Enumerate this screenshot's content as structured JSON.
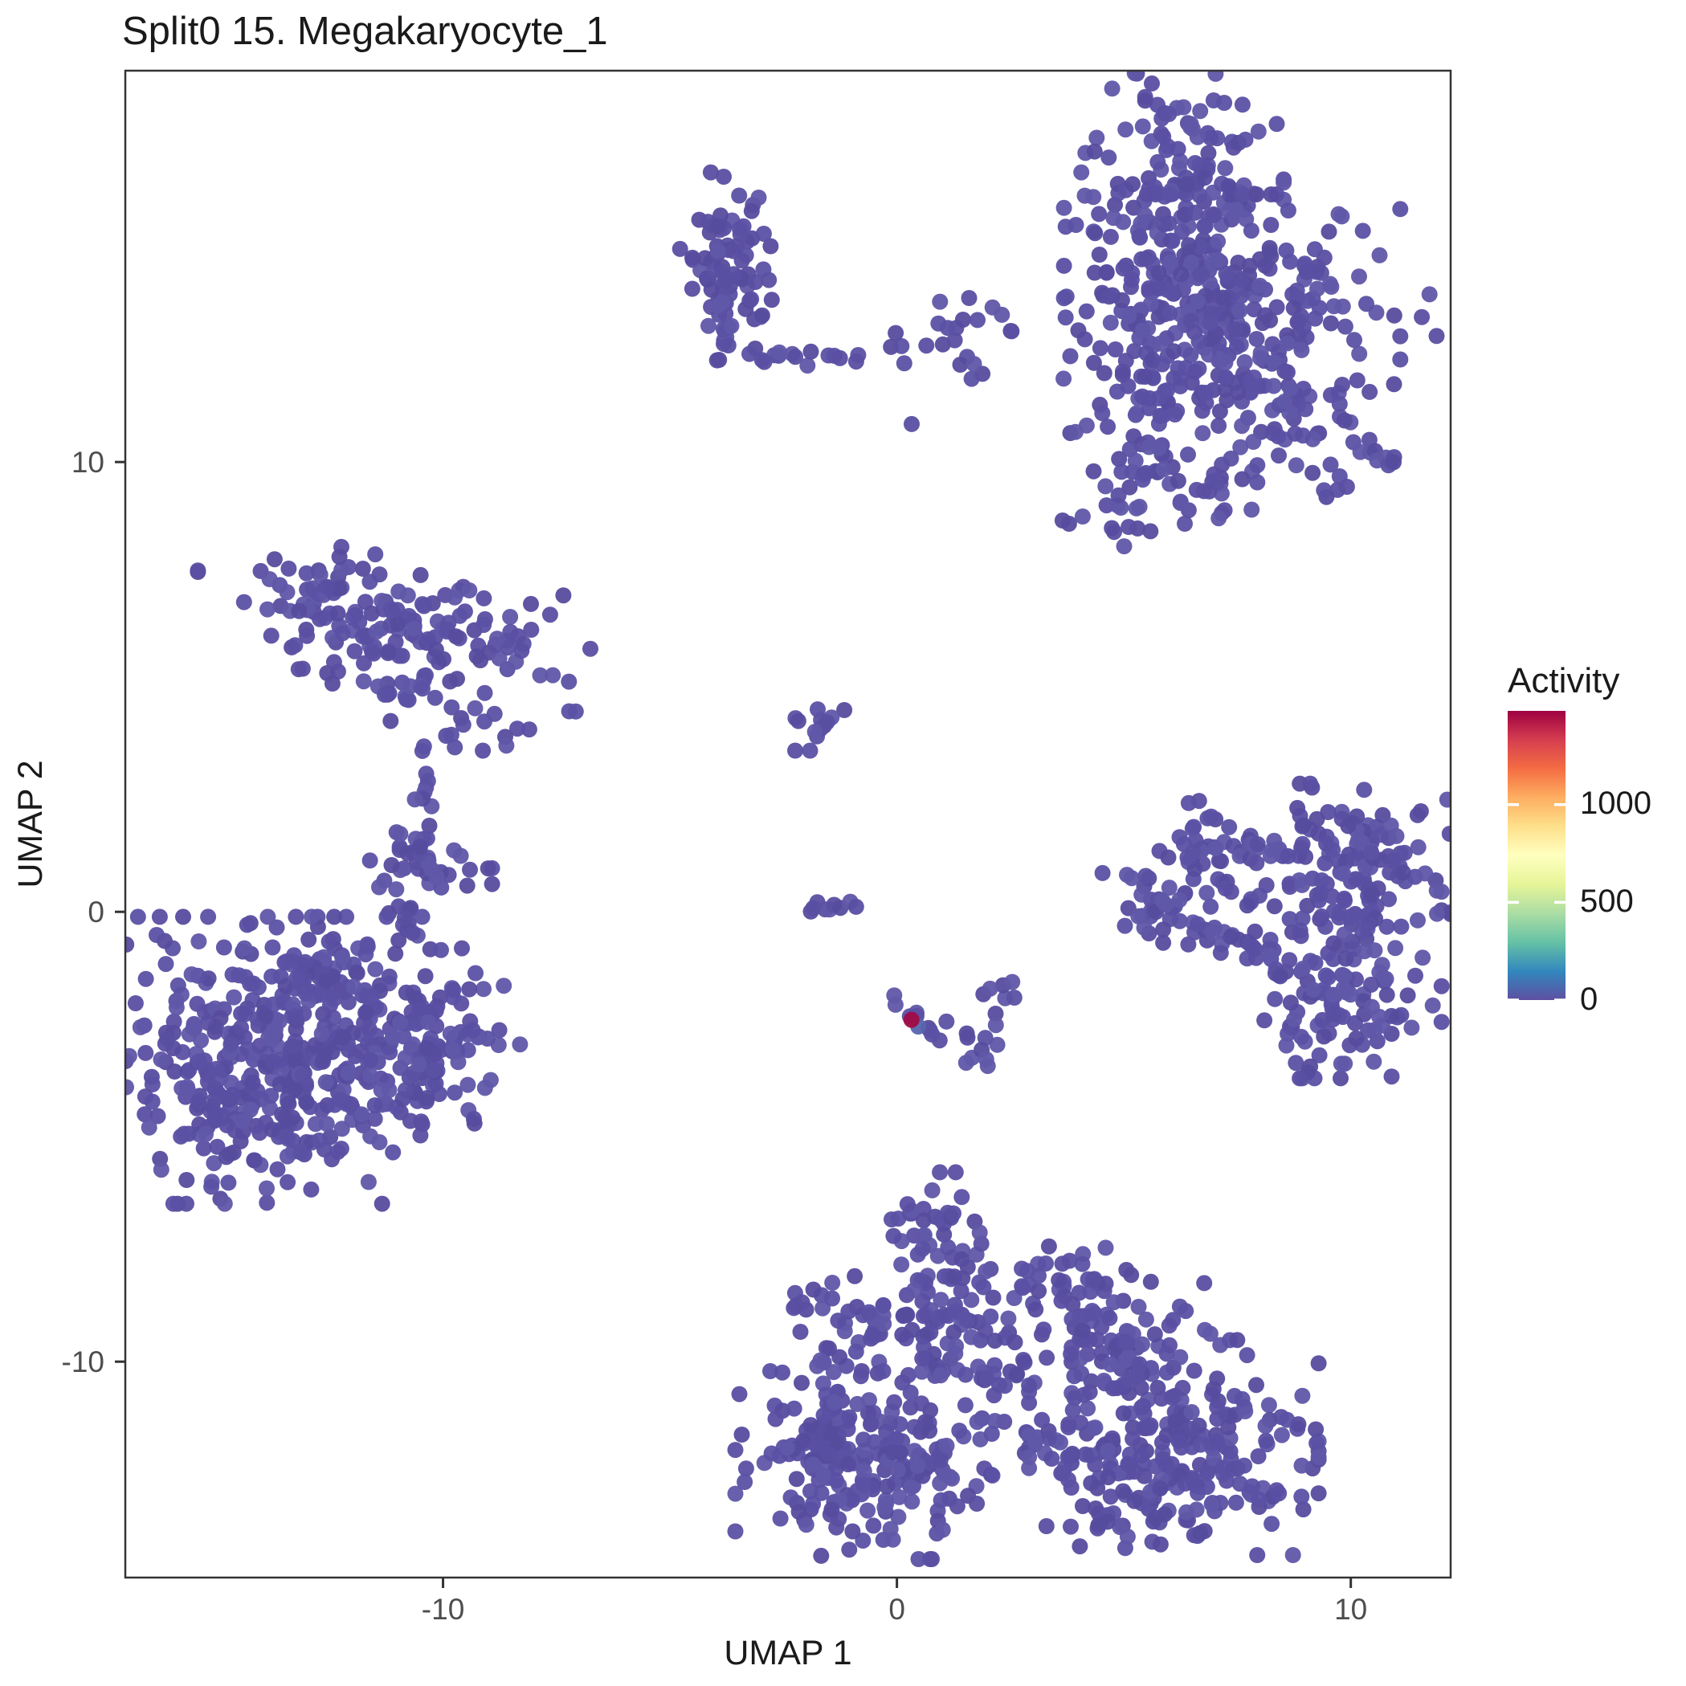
{
  "chart_data": {
    "type": "scatter",
    "title": "Split0 15. Megakaryocyte_1",
    "xlabel": "UMAP 1",
    "ylabel": "UMAP 2",
    "xlim": [
      -17.0,
      12.2
    ],
    "ylim": [
      -14.8,
      18.7
    ],
    "x_ticks": [
      -10,
      0,
      10
    ],
    "y_ticks": [
      -10,
      0,
      10
    ],
    "grid": false,
    "background": "#ffffff",
    "panel_border_color": "#333333",
    "tick_label_color": "#4d4d4d",
    "point_radius_px": 10,
    "base_point_colors": [
      "#5b51a4",
      "#5a4fa2",
      "#6057a8",
      "#564c9e"
    ],
    "legend": {
      "title": "Activity",
      "position": "right",
      "ticks": [
        0,
        500,
        1000
      ],
      "value_min": 0,
      "value_max": 1480,
      "palette_name": "spectral-reversed",
      "gradient_top_to_bottom": [
        "#9E0142",
        "#D53E4F",
        "#F46D43",
        "#FDAE61",
        "#FEE08B",
        "#FFFFBF",
        "#E6F598",
        "#ABDDA4",
        "#66C2A5",
        "#3288BD",
        "#5E4FA2"
      ]
    },
    "seed": 20240915,
    "clusters": [
      {
        "type": "blob",
        "x": -3.85,
        "y": 14.35,
        "sx": 0.5,
        "sy": 0.95,
        "n": 75
      },
      {
        "type": "blob",
        "x": -3.6,
        "y": 13.4,
        "sx": 0.3,
        "sy": 0.4,
        "n": 12
      },
      {
        "type": "chain",
        "x1": -3.25,
        "y1": 12.45,
        "x2": -1.9,
        "y2": 12.3,
        "n": 11,
        "jitter": 0.1
      },
      {
        "type": "chain",
        "x1": -1.5,
        "y1": 12.4,
        "x2": -0.8,
        "y2": 12.3,
        "n": 5,
        "jitter": 0.08
      },
      {
        "type": "blob",
        "x": -0.05,
        "y": 12.55,
        "sx": 0.18,
        "sy": 0.22,
        "n": 4
      },
      {
        "type": "blob",
        "x": 0.3,
        "y": 10.93,
        "sx": 0.05,
        "sy": 0.05,
        "n": 1
      },
      {
        "type": "blob",
        "x": 0.9,
        "y": 13.1,
        "sx": 0.45,
        "sy": 0.5,
        "n": 9
      },
      {
        "type": "blob",
        "x": 1.55,
        "y": 12.2,
        "sx": 0.3,
        "sy": 0.25,
        "n": 5
      },
      {
        "type": "blob",
        "x": 2.0,
        "y": 13.35,
        "sx": 0.2,
        "sy": 0.18,
        "n": 3
      },
      {
        "type": "blob",
        "x": 2.5,
        "y": 12.9,
        "sx": 0.15,
        "sy": 0.12,
        "n": 2
      },
      {
        "type": "blob",
        "x": 6.1,
        "y": 15.3,
        "sx": 1.1,
        "sy": 1.8,
        "n": 200
      },
      {
        "type": "blob",
        "x": 7.9,
        "y": 13.2,
        "sx": 1.45,
        "sy": 1.25,
        "n": 170
      },
      {
        "type": "blob",
        "x": 6.6,
        "y": 14.2,
        "sx": 0.9,
        "sy": 0.9,
        "n": 60
      },
      {
        "type": "blob",
        "x": 5.8,
        "y": 11.8,
        "sx": 0.9,
        "sy": 1.1,
        "n": 70
      },
      {
        "type": "blob",
        "x": 8.9,
        "y": 10.7,
        "sx": 0.7,
        "sy": 0.6,
        "n": 30
      },
      {
        "type": "blob",
        "x": 4.15,
        "y": 12.6,
        "sx": 0.3,
        "sy": 0.45,
        "n": 6
      },
      {
        "type": "blob",
        "x": 5.3,
        "y": 9.6,
        "sx": 0.75,
        "sy": 0.7,
        "n": 38
      },
      {
        "type": "blob",
        "x": 6.95,
        "y": 9.3,
        "sx": 0.45,
        "sy": 0.45,
        "n": 16
      },
      {
        "type": "blob",
        "x": 9.5,
        "y": 9.6,
        "sx": 0.3,
        "sy": 0.25,
        "n": 5
      },
      {
        "type": "chain",
        "x1": 10.15,
        "y1": 10.45,
        "x2": 11.1,
        "y2": 9.95,
        "n": 10,
        "jitter": 0.12
      },
      {
        "type": "blob",
        "x": 11.9,
        "y": 13.4,
        "sx": 0.2,
        "sy": 0.3,
        "n": 3
      },
      {
        "type": "blob",
        "x": 5.85,
        "y": 0.3,
        "sx": 0.6,
        "sy": 0.55,
        "n": 42
      },
      {
        "type": "blob",
        "x": 6.8,
        "y": 1.55,
        "sx": 0.45,
        "sy": 0.45,
        "n": 25
      },
      {
        "type": "chain",
        "x1": 7.35,
        "y1": 1.5,
        "x2": 8.9,
        "y2": 1.3,
        "n": 16,
        "jitter": 0.12
      },
      {
        "type": "blob",
        "x": 10.0,
        "y": 1.2,
        "sx": 1.0,
        "sy": 0.75,
        "n": 105
      },
      {
        "type": "chain",
        "x1": 10.35,
        "y1": 0.5,
        "x2": 10.45,
        "y2": -0.5,
        "n": 12,
        "jitter": 0.15
      },
      {
        "type": "blob",
        "x": 9.8,
        "y": -1.5,
        "sx": 1.0,
        "sy": 1.0,
        "n": 125
      },
      {
        "type": "chain",
        "x1": 6.35,
        "y1": -0.35,
        "x2": 8.8,
        "y2": -1.25,
        "n": 28,
        "jitter": 0.18
      },
      {
        "type": "blob",
        "x": 7.4,
        "y": 0.55,
        "sx": 0.55,
        "sy": 0.45,
        "n": 7
      },
      {
        "type": "blob",
        "x": -11.0,
        "y": 6.3,
        "sx": 2.0,
        "sy": 0.7,
        "n": 165,
        "tilt": -0.22
      },
      {
        "type": "blob",
        "x": -10.8,
        "y": 4.75,
        "sx": 0.4,
        "sy": 0.38,
        "n": 15
      },
      {
        "type": "blob",
        "x": -9.2,
        "y": 4.2,
        "sx": 0.5,
        "sy": 0.28,
        "n": 12
      },
      {
        "type": "blob",
        "x": -10.45,
        "y": 3.5,
        "sx": 0.08,
        "sy": 0.08,
        "n": 2
      },
      {
        "type": "chain",
        "x1": -10.3,
        "y1": 3.05,
        "x2": -10.4,
        "y2": 2.3,
        "n": 7,
        "jitter": 0.1
      },
      {
        "type": "blob",
        "x": -10.35,
        "y": 1.15,
        "sx": 0.65,
        "sy": 0.5,
        "n": 38
      },
      {
        "type": "chain",
        "x1": -10.95,
        "y1": 0.3,
        "x2": -10.6,
        "y2": -0.75,
        "n": 14,
        "jitter": 0.16
      },
      {
        "type": "blob",
        "x": -14.2,
        "y": -3.3,
        "sx": 1.7,
        "sy": 1.45,
        "n": 370
      },
      {
        "type": "blob",
        "x": -11.7,
        "y": -2.9,
        "sx": 1.25,
        "sy": 0.95,
        "n": 120
      },
      {
        "type": "blob",
        "x": -12.7,
        "y": -1.5,
        "sx": 0.75,
        "sy": 0.55,
        "n": 45
      },
      {
        "type": "blob",
        "x": -9.95,
        "y": -3.1,
        "sx": 0.75,
        "sy": 0.85,
        "n": 55
      },
      {
        "type": "blob",
        "x": -1.65,
        "y": 4.2,
        "sx": 0.32,
        "sy": 0.28,
        "n": 13
      },
      {
        "type": "chain",
        "x1": -2.05,
        "y1": 0.1,
        "x2": -0.9,
        "y2": 0.15,
        "n": 9,
        "jitter": 0.07
      },
      {
        "type": "chain",
        "x1": 0.0,
        "y1": -2.05,
        "x2": 0.7,
        "y2": -2.65,
        "n": 7,
        "jitter": 0.09
      },
      {
        "type": "blob",
        "x": 0.9,
        "y": -2.8,
        "sx": 0.12,
        "sy": 0.1,
        "n": 2
      },
      {
        "type": "blob",
        "x": 1.75,
        "y": -2.7,
        "sx": 0.38,
        "sy": 0.33,
        "n": 12
      },
      {
        "type": "blob",
        "x": 2.4,
        "y": -1.85,
        "sx": 0.28,
        "sy": 0.24,
        "n": 6
      },
      {
        "type": "blob",
        "x": 0.65,
        "y": -7.0,
        "sx": 0.45,
        "sy": 0.55,
        "n": 26
      },
      {
        "type": "blob",
        "x": 1.35,
        "y": -6.75,
        "sx": 0.08,
        "sy": 0.08,
        "n": 2
      },
      {
        "type": "blob",
        "x": 1.35,
        "y": -8.6,
        "sx": 0.75,
        "sy": 0.78,
        "n": 72
      },
      {
        "type": "blob",
        "x": 3.5,
        "y": -8.0,
        "sx": 0.5,
        "sy": 0.38,
        "n": 20
      },
      {
        "type": "blob",
        "x": 2.8,
        "y": -7.9,
        "sx": 0.08,
        "sy": 0.08,
        "n": 2
      },
      {
        "type": "blob",
        "x": -0.35,
        "y": -9.2,
        "sx": 0.75,
        "sy": 0.5,
        "n": 42
      },
      {
        "type": "chain",
        "x1": -1.55,
        "y1": -9.85,
        "x2": -1.3,
        "y2": -11.0,
        "n": 11,
        "jitter": 0.14
      },
      {
        "type": "blob",
        "x": 0.2,
        "y": -10.4,
        "sx": 0.08,
        "sy": 0.08,
        "n": 2
      },
      {
        "type": "blob",
        "x": 4.9,
        "y": -9.5,
        "sx": 0.85,
        "sy": 0.7,
        "n": 85
      },
      {
        "type": "chain",
        "x1": 6.8,
        "y1": -9.3,
        "x2": 7.5,
        "y2": -9.85,
        "n": 6,
        "jitter": 0.1
      },
      {
        "type": "blob",
        "x": 2.2,
        "y": -10.3,
        "sx": 0.75,
        "sy": 0.75,
        "n": 28
      },
      {
        "type": "blob",
        "x": 2.85,
        "y": -11.6,
        "sx": 0.55,
        "sy": 0.38,
        "n": 9
      },
      {
        "type": "blob",
        "x": -0.7,
        "y": -12.3,
        "sx": 1.3,
        "sy": 0.95,
        "n": 235
      },
      {
        "type": "blob",
        "x": 6.1,
        "y": -12.1,
        "sx": 1.45,
        "sy": 1.0,
        "n": 255
      },
      {
        "type": "blob",
        "x": 3.9,
        "y": -12.3,
        "sx": 0.5,
        "sy": 0.38,
        "n": 9
      },
      {
        "type": "blob",
        "x": -2.1,
        "y": -8.9,
        "sx": 0.22,
        "sy": 0.32,
        "n": 5
      },
      {
        "type": "blob",
        "x": -2.05,
        "y": -11.8,
        "sx": 0.28,
        "sy": 0.45,
        "n": 9
      }
    ],
    "highlight_points": [
      {
        "x": 0.47,
        "y": -2.55,
        "activity": 120,
        "color": "#5765AE"
      },
      {
        "x": 0.32,
        "y": -2.4,
        "activity": 1480,
        "color": "#A00C44"
      }
    ]
  }
}
